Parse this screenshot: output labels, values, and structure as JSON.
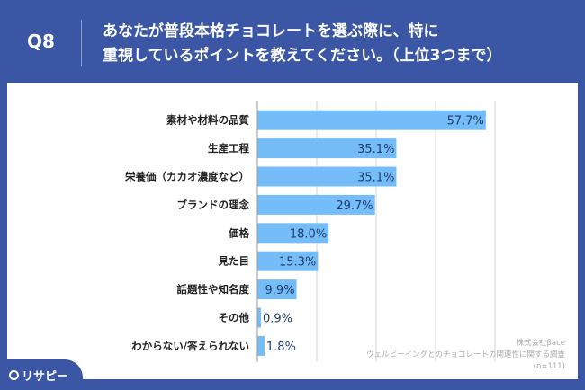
{
  "header": {
    "question_no": "Q8",
    "title_line1": "あなたが普段本格チョコレートを選ぶ際に、特に",
    "title_line2": "重視しているポイントを教えてください。（上位3つまで）"
  },
  "logo": {
    "text": "リサピー"
  },
  "source": {
    "company": "株式会社βace",
    "survey": "ウェルビーイングとのチョコレートの関連性に関する調査",
    "n": "(n=111)"
  },
  "colors": {
    "background": "#3b56a4",
    "bar": "#74bdf8",
    "value_text": "#213d6b"
  },
  "chart_data": {
    "type": "bar",
    "orientation": "horizontal",
    "categories": [
      "素材や材料の品質",
      "生産工程",
      "栄養価（カカオ濃度など）",
      "ブランドの理念",
      "価格",
      "見た目",
      "話題性や知名度",
      "その他",
      "わからない/答えられない"
    ],
    "values": [
      57.7,
      35.1,
      35.1,
      29.7,
      18.0,
      15.3,
      9.9,
      0.9,
      1.8
    ],
    "value_labels": [
      "57.7%",
      "35.1%",
      "35.1%",
      "29.7%",
      "18.0%",
      "15.3%",
      "9.9%",
      "0.9%",
      "1.8%"
    ],
    "xlim": [
      0,
      60
    ],
    "grid_step": 15,
    "grid": true,
    "unit": "%"
  }
}
